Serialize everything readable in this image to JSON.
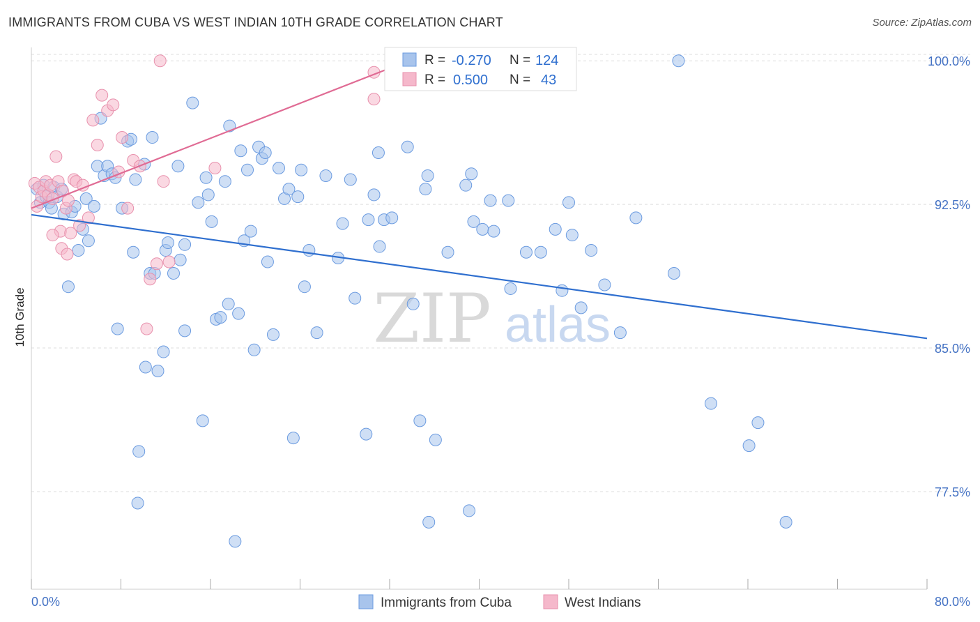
{
  "title": "IMMIGRANTS FROM CUBA VS WEST INDIAN 10TH GRADE CORRELATION CHART",
  "source": "Source: ZipAtlas.com",
  "watermark": {
    "zip": "ZIP",
    "atlas": "atlas"
  },
  "colors": {
    "blue_fill": "#a8c4ec",
    "blue_stroke": "#6b9be0",
    "blue_line": "#2f6fcf",
    "pink_fill": "#f5b8cb",
    "pink_stroke": "#e891ad",
    "pink_line": "#e06b94",
    "tick_text": "#4472c4",
    "grid": "#dddddd"
  },
  "legend_top": {
    "rows": [
      {
        "r_label": "R =",
        "r_value": "-0.270",
        "n_label": "N =",
        "n_value": "124",
        "series": "blue"
      },
      {
        "r_label": "R =",
        "r_value": "0.500",
        "n_label": "N =",
        "n_value": "43",
        "series": "pink"
      }
    ]
  },
  "legend_bottom": [
    {
      "label": "Immigrants from Cuba",
      "series": "blue"
    },
    {
      "label": "West Indians",
      "series": "pink"
    }
  ],
  "chart_data": {
    "type": "scatter",
    "title": "IMMIGRANTS FROM CUBA VS WEST INDIAN 10TH GRADE CORRELATION CHART",
    "xlabel": "",
    "ylabel": "10th Grade",
    "xlim": [
      0,
      80
    ],
    "ylim": [
      72.4,
      100.7
    ],
    "x_tick_labels": [
      "0.0%",
      "80.0%"
    ],
    "y_ticks": [
      77.5,
      85.0,
      92.5,
      100.0
    ],
    "y_tick_labels": [
      "77.5%",
      "85.0%",
      "92.5%",
      "100.0%"
    ],
    "grid": true,
    "legend_placement": "top-center",
    "series": [
      {
        "name": "Immigrants from Cuba",
        "color": "#6b9be0",
        "trend": {
          "x": [
            0,
            80
          ],
          "y": [
            91.96,
            85.5
          ]
        },
        "points": [
          [
            0.5,
            93.3
          ],
          [
            0.8,
            92.6
          ],
          [
            1.1,
            93.5
          ],
          [
            1.3,
            92.9
          ],
          [
            1.6,
            92.6
          ],
          [
            1.8,
            92.3
          ],
          [
            2.0,
            93.4
          ],
          [
            2.3,
            92.9
          ],
          [
            2.7,
            93.3
          ],
          [
            2.9,
            92.0
          ],
          [
            3.3,
            88.2
          ],
          [
            3.6,
            92.1
          ],
          [
            3.9,
            92.4
          ],
          [
            4.2,
            90.1
          ],
          [
            4.6,
            91.2
          ],
          [
            4.9,
            92.8
          ],
          [
            5.1,
            90.6
          ],
          [
            5.6,
            92.4
          ],
          [
            5.9,
            94.5
          ],
          [
            6.2,
            97.0
          ],
          [
            6.5,
            94.0
          ],
          [
            6.8,
            94.5
          ],
          [
            7.2,
            94.1
          ],
          [
            7.5,
            93.9
          ],
          [
            7.7,
            86.0
          ],
          [
            8.1,
            92.3
          ],
          [
            8.6,
            95.8
          ],
          [
            8.9,
            95.9
          ],
          [
            9.1,
            90.0
          ],
          [
            9.3,
            93.8
          ],
          [
            9.6,
            79.6
          ],
          [
            9.5,
            76.9
          ],
          [
            10.1,
            94.6
          ],
          [
            10.2,
            84.0
          ],
          [
            10.6,
            88.9
          ],
          [
            10.8,
            96.0
          ],
          [
            11.0,
            88.9
          ],
          [
            11.3,
            83.8
          ],
          [
            11.8,
            84.8
          ],
          [
            12.0,
            90.1
          ],
          [
            12.2,
            90.5
          ],
          [
            12.7,
            88.9
          ],
          [
            13.1,
            94.5
          ],
          [
            13.3,
            89.6
          ],
          [
            13.7,
            85.9
          ],
          [
            13.7,
            90.4
          ],
          [
            14.4,
            97.8
          ],
          [
            14.9,
            92.6
          ],
          [
            15.3,
            81.2
          ],
          [
            15.6,
            93.9
          ],
          [
            15.8,
            93.0
          ],
          [
            16.1,
            91.6
          ],
          [
            16.5,
            86.5
          ],
          [
            16.9,
            86.6
          ],
          [
            17.3,
            93.7
          ],
          [
            17.6,
            87.3
          ],
          [
            17.7,
            96.6
          ],
          [
            18.2,
            74.9
          ],
          [
            18.5,
            86.8
          ],
          [
            18.7,
            95.3
          ],
          [
            19.0,
            90.6
          ],
          [
            19.3,
            94.3
          ],
          [
            19.6,
            91.1
          ],
          [
            19.9,
            84.9
          ],
          [
            20.3,
            95.5
          ],
          [
            20.6,
            94.9
          ],
          [
            20.9,
            95.2
          ],
          [
            21.1,
            89.5
          ],
          [
            21.6,
            85.7
          ],
          [
            22.1,
            94.4
          ],
          [
            22.6,
            92.8
          ],
          [
            23.0,
            93.3
          ],
          [
            23.4,
            80.3
          ],
          [
            23.8,
            92.9
          ],
          [
            24.1,
            94.3
          ],
          [
            24.4,
            88.2
          ],
          [
            24.8,
            90.1
          ],
          [
            25.5,
            85.8
          ],
          [
            26.3,
            94.0
          ],
          [
            27.4,
            89.7
          ],
          [
            27.8,
            91.5
          ],
          [
            28.5,
            93.8
          ],
          [
            28.9,
            87.6
          ],
          [
            29.9,
            80.5
          ],
          [
            30.1,
            91.7
          ],
          [
            30.6,
            93.0
          ],
          [
            31.0,
            95.2
          ],
          [
            31.1,
            90.3
          ],
          [
            31.5,
            91.7
          ],
          [
            32.2,
            91.8
          ],
          [
            33.6,
            95.5
          ],
          [
            34.1,
            87.3
          ],
          [
            34.7,
            81.2
          ],
          [
            35.2,
            93.3
          ],
          [
            35.4,
            94.0
          ],
          [
            35.5,
            75.9
          ],
          [
            36.1,
            80.2
          ],
          [
            37.2,
            90.0
          ],
          [
            38.8,
            93.5
          ],
          [
            39.1,
            76.5
          ],
          [
            39.3,
            94.1
          ],
          [
            39.5,
            91.6
          ],
          [
            40.3,
            91.2
          ],
          [
            41.3,
            91.1
          ],
          [
            42.6,
            92.7
          ],
          [
            42.8,
            88.1
          ],
          [
            44.2,
            90.0
          ],
          [
            45.5,
            90.0
          ],
          [
            46.8,
            91.2
          ],
          [
            47.4,
            88.0
          ],
          [
            48.0,
            92.6
          ],
          [
            48.3,
            90.9
          ],
          [
            49.1,
            87.1
          ],
          [
            50.0,
            90.1
          ],
          [
            51.2,
            88.3
          ],
          [
            52.6,
            85.8
          ],
          [
            54.0,
            91.8
          ],
          [
            57.4,
            88.9
          ],
          [
            57.8,
            100.0
          ],
          [
            60.7,
            82.1
          ],
          [
            64.1,
            79.9
          ],
          [
            64.9,
            81.1
          ],
          [
            67.4,
            75.9
          ],
          [
            41.0,
            92.7
          ]
        ]
      },
      {
        "name": "West Indians",
        "color": "#e891ad",
        "trend": {
          "x": [
            0,
            33.7
          ],
          "y": [
            92.3,
            100.0
          ]
        },
        "points": [
          [
            0.3,
            93.6
          ],
          [
            0.5,
            92.4
          ],
          [
            0.7,
            93.4
          ],
          [
            0.9,
            92.9
          ],
          [
            1.1,
            93.2
          ],
          [
            1.3,
            93.7
          ],
          [
            1.5,
            93.0
          ],
          [
            1.7,
            93.5
          ],
          [
            1.9,
            92.8
          ],
          [
            2.2,
            95.0
          ],
          [
            2.4,
            93.7
          ],
          [
            2.6,
            91.1
          ],
          [
            2.8,
            93.2
          ],
          [
            3.1,
            92.3
          ],
          [
            3.3,
            92.7
          ],
          [
            3.5,
            91.0
          ],
          [
            3.8,
            93.8
          ],
          [
            4.0,
            93.7
          ],
          [
            4.3,
            91.4
          ],
          [
            4.6,
            93.5
          ],
          [
            5.1,
            91.8
          ],
          [
            5.5,
            96.9
          ],
          [
            5.9,
            95.6
          ],
          [
            6.3,
            98.2
          ],
          [
            6.8,
            97.4
          ],
          [
            7.3,
            97.7
          ],
          [
            7.8,
            94.2
          ],
          [
            8.1,
            96.0
          ],
          [
            8.6,
            92.3
          ],
          [
            9.1,
            94.8
          ],
          [
            9.7,
            94.5
          ],
          [
            10.3,
            86.0
          ],
          [
            10.6,
            88.6
          ],
          [
            11.2,
            89.4
          ],
          [
            11.8,
            93.7
          ],
          [
            12.3,
            89.5
          ],
          [
            16.4,
            94.4
          ],
          [
            30.6,
            98.0
          ],
          [
            30.6,
            99.4
          ],
          [
            11.5,
            100.0
          ],
          [
            2.7,
            90.2
          ],
          [
            3.2,
            89.9
          ],
          [
            1.9,
            90.9
          ]
        ]
      }
    ]
  }
}
